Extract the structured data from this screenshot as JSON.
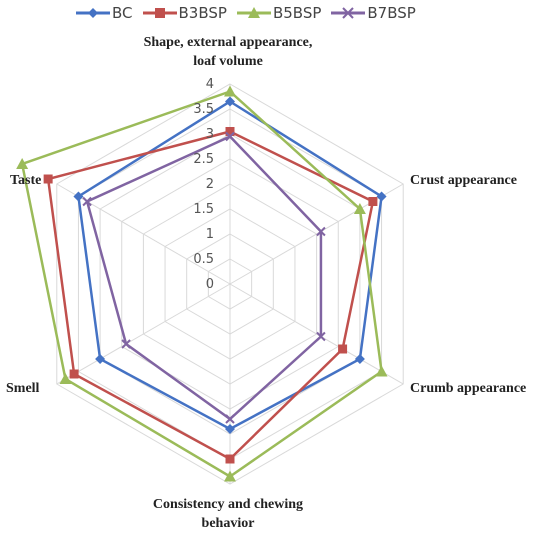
{
  "chart_data": {
    "type": "radar",
    "axes": [
      [
        "Shape, external appearance,",
        "loaf volume"
      ],
      [
        "Crust appearance"
      ],
      [
        "Crumb appearance"
      ],
      [
        "Consistency and chewing",
        "behavior"
      ],
      [
        "Smell"
      ],
      [
        "Taste"
      ]
    ],
    "ticks": [
      "0",
      "0.5",
      "1",
      "1.5",
      "2",
      "2.5",
      "3",
      "3.5",
      "4"
    ],
    "rlim": [
      0,
      4
    ],
    "grid": true,
    "legend_position": "top",
    "series": [
      {
        "name": "BC",
        "color": "#4472C4",
        "marker": "diamond",
        "values": [
          3.65,
          3.5,
          3.0,
          2.9,
          3.0,
          3.5
        ]
      },
      {
        "name": "B3BSP",
        "color": "#C0504D",
        "marker": "square",
        "values": [
          3.05,
          3.3,
          2.6,
          3.5,
          3.6,
          4.2
        ]
      },
      {
        "name": "B5BSP",
        "color": "#9BBB59",
        "marker": "triangle",
        "values": [
          3.85,
          3.0,
          3.5,
          3.85,
          3.8,
          4.8
        ]
      },
      {
        "name": "B7BSP",
        "color": "#8064A2",
        "marker": "x",
        "values": [
          2.95,
          2.1,
          2.1,
          2.7,
          2.4,
          3.3
        ]
      }
    ]
  }
}
